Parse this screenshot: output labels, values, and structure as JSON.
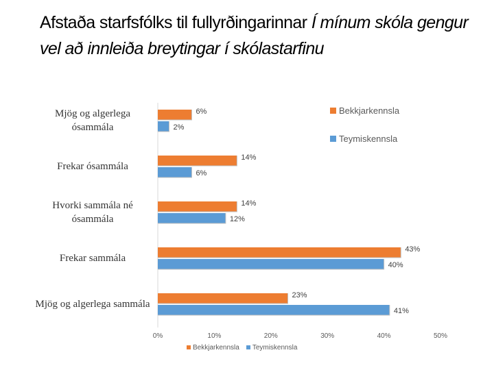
{
  "title": {
    "part1": "Afstaða starfsfólks til fullyrðingarinnar ",
    "part2": "Í mínum skóla gengur vel að innleiða breytingar í skólastarfinu"
  },
  "colors": {
    "bekkjarkennsla": "#ED7D31",
    "teymiskennsla": "#5B9BD5"
  },
  "chart_data": {
    "type": "bar",
    "orientation": "horizontal",
    "categories": [
      "Mjög og algerlega ósammála",
      "Frekar ósammála",
      "Hvorki sammála né ósammála",
      "Frekar sammála",
      "Mjög og algerlega sammála"
    ],
    "series": [
      {
        "name": "Bekkjarkennsla",
        "values": [
          6,
          14,
          14,
          43,
          23
        ]
      },
      {
        "name": "Teymiskennsla",
        "values": [
          2,
          6,
          12,
          40,
          41
        ]
      }
    ],
    "xlim": [
      0,
      50
    ],
    "xticks": [
      "0%",
      "10%",
      "20%",
      "30%",
      "40%",
      "50%"
    ],
    "value_suffix": "%",
    "legend_position": "top-right",
    "grid": false
  },
  "legend": {
    "items": [
      "Bekkjarkennsla",
      "Teymiskennsla"
    ]
  },
  "legend_bottom": {
    "items": [
      "Bekkjarkennsla",
      "Teymiskennsla"
    ]
  }
}
